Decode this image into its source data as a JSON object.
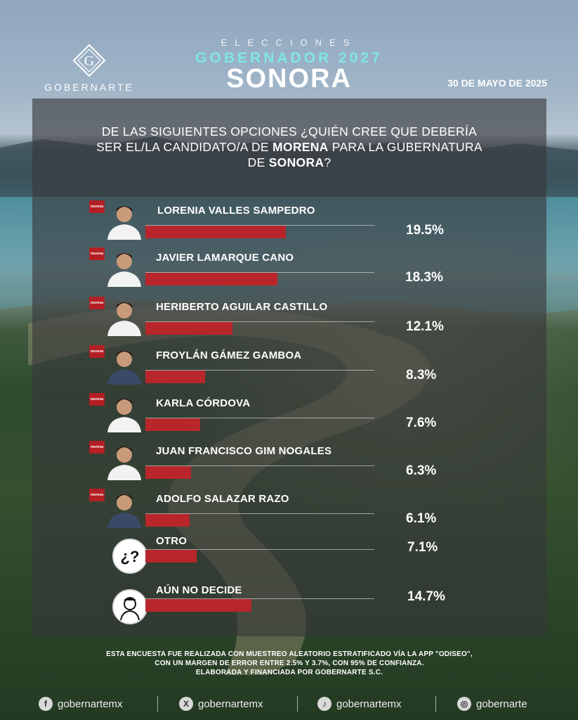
{
  "header": {
    "logo_text": "GOBERNARTE",
    "kicker": "ELECCIONES",
    "subtitle": "GOBERNADOR 2027",
    "title": "SONORA",
    "date": "30 DE MAYO DE 2025"
  },
  "question": {
    "line1": "DE LAS SIGUIENTES OPCIONES ¿QUIÉN CREE QUE DEBERÍA",
    "line2_pre": "SER EL/LA CANDIDATO/A DE ",
    "line2_bold": "MORENA",
    "line2_post": " PARA LA GUBERNATURA",
    "line3_pre": "DE ",
    "line3_bold": "SONORA",
    "line3_post": "?"
  },
  "colors": {
    "bar": "#b8262b",
    "accent_title": "#7fe6e3",
    "morena": "#b41f24"
  },
  "chart_data": {
    "type": "bar",
    "orientation": "horizontal",
    "categories": [
      "LORENIA VALLES SAMPEDRO",
      "JAVIER LAMARQUE CANO",
      "HERIBERTO AGUILAR CASTILLO",
      "FROYLÁN GÁMEZ GAMBOA",
      "KARLA CÓRDOVA",
      "JUAN FRANCISCO GIM NOGALES",
      "ADOLFO SALAZAR RAZO",
      "OTRO",
      "AÚN NO DECIDE"
    ],
    "values": [
      19.5,
      18.3,
      12.1,
      8.3,
      7.6,
      6.3,
      6.1,
      7.1,
      14.7
    ],
    "labels": [
      "19.5%",
      "18.3%",
      "12.1%",
      "8.3%",
      "7.6%",
      "6.3%",
      "6.1%",
      "7.1%",
      "14.7%"
    ],
    "icons": [
      "candidate-photo",
      "candidate-photo",
      "candidate-photo",
      "candidate-photo",
      "candidate-photo",
      "candidate-photo",
      "candidate-photo",
      "question-mark-icon",
      "undecided-person-icon"
    ],
    "party_badge": [
      true,
      true,
      true,
      true,
      true,
      true,
      true,
      false,
      false
    ]
  },
  "footer": {
    "line1_pre": "ESTA ENCUESTA FUE REALIZADA CON MUESTREO ALEATORIO ESTRATIFICADO VÍA LA ",
    "line1_bold": "APP \"ODISEO\"",
    "line1_post": ",",
    "line2_pre": "CON UN MARGEN DE ERROR ENTRE 2.5% Y 3.7%, CON ",
    "line2_bold": "95% DE CONFIANZA",
    "line2_post": ".",
    "line3_pre": "ELABORADA Y FINANCIADA POR ",
    "line3_bold": "GOBERNARTE S.C."
  },
  "morena_badge_text": "morena",
  "social": [
    {
      "icon": "facebook-icon",
      "glyph": "f",
      "handle": "gobernartemx"
    },
    {
      "icon": "x-icon",
      "glyph": "X",
      "handle": "gobernartemx"
    },
    {
      "icon": "tiktok-icon",
      "glyph": "♪",
      "handle": "gobernartemx"
    },
    {
      "icon": "instagram-icon",
      "glyph": "◎",
      "handle": "gobernarte"
    }
  ]
}
